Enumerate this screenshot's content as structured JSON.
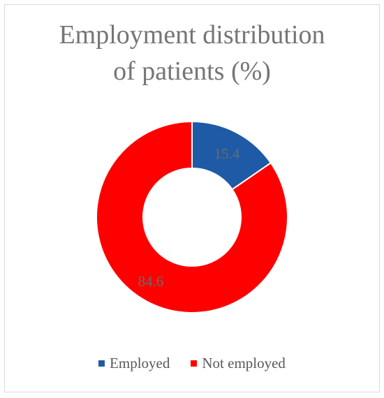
{
  "chart_data": {
    "type": "donut",
    "title_lines": [
      "Employment distribution",
      "of patients (%)"
    ],
    "categories": [
      "Employed",
      "Not employed"
    ],
    "values": [
      15.4,
      84.6
    ],
    "data_labels": [
      "15.4",
      "84.6"
    ],
    "colors": [
      "#1f5aa6",
      "#ff0000"
    ],
    "legend_position": "bottom"
  }
}
